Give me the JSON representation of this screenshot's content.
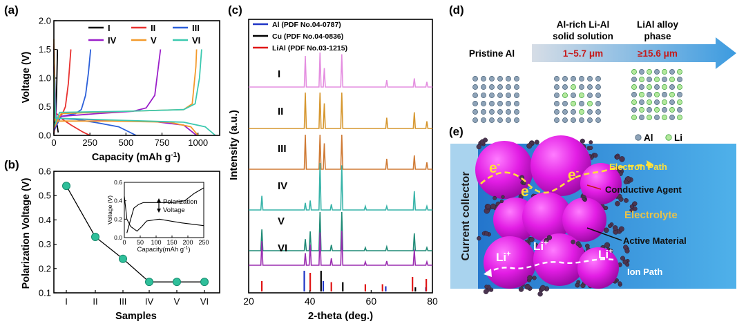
{
  "panels": {
    "a": "(a)",
    "b": "(b)",
    "c": "(c)",
    "d": "(d)",
    "e": "(e)"
  },
  "colors": {
    "I": "#000000",
    "II": "#e8312f",
    "III": "#2b5fd9",
    "IV": "#9b1fc9",
    "V": "#f39a2b",
    "VI": "#3cc9b0",
    "xrd_I": "#e48ee0",
    "xrd_II": "#d6972f",
    "xrd_III": "#cf7a34",
    "xrd_IV": "#36b3a8",
    "xrd_V": "#1f8a76",
    "xrd_VI": "#9a2db0",
    "ref_Al": "#1f35c6",
    "ref_Cu": "#000000",
    "ref_LiAl": "#e01515",
    "ball": "#2fbf9a",
    "magenta": "#e21de4",
    "arrow": "#3c9be0",
    "highlight": "#c51a1a"
  },
  "chart_data": [
    {
      "id": "a",
      "type": "line",
      "xlabel": "Capacity (mAh g",
      "xlabel_sup": "-1",
      "xlabel_end": ")",
      "ylabel": "Voltage (V)",
      "xlim": [
        0,
        1150
      ],
      "ylim": [
        0,
        2.0
      ],
      "xticks": [
        0,
        250,
        500,
        750,
        1000
      ],
      "yticks": [
        0.0,
        0.5,
        1.0,
        1.5,
        2.0
      ],
      "ytick_labels": [
        "0.0",
        "0.5",
        "1.0",
        "1.5",
        "2.0"
      ],
      "legend": [
        "I",
        "II",
        "III",
        "IV",
        "V",
        "VI"
      ],
      "series": [
        {
          "name": "I",
          "discharge": [
            [
              0,
              1.55
            ],
            [
              3,
              0.6
            ],
            [
              8,
              0.3
            ],
            [
              20,
              0.22
            ],
            [
              30,
              0.05
            ]
          ],
          "charge": [
            [
              0,
              0.02
            ],
            [
              8,
              0.25
            ],
            [
              15,
              0.42
            ],
            [
              20,
              0.9
            ],
            [
              25,
              1.5
            ]
          ]
        },
        {
          "name": "II",
          "discharge": [
            [
              0,
              1.6
            ],
            [
              10,
              0.4
            ],
            [
              60,
              0.28
            ],
            [
              120,
              0.18
            ],
            [
              200,
              0.06
            ],
            [
              250,
              0.0
            ]
          ],
          "charge": [
            [
              0,
              0.05
            ],
            [
              30,
              0.3
            ],
            [
              60,
              0.38
            ],
            [
              80,
              0.5
            ],
            [
              100,
              0.9
            ],
            [
              118,
              1.5
            ]
          ]
        },
        {
          "name": "III",
          "discharge": [
            [
              0,
              1.5
            ],
            [
              15,
              0.3
            ],
            [
              150,
              0.28
            ],
            [
              300,
              0.22
            ],
            [
              450,
              0.15
            ],
            [
              570,
              0.0
            ]
          ],
          "charge": [
            [
              0,
              0.08
            ],
            [
              50,
              0.33
            ],
            [
              150,
              0.38
            ],
            [
              190,
              0.45
            ],
            [
              220,
              0.7
            ],
            [
              240,
              1.1
            ],
            [
              255,
              1.5
            ]
          ]
        },
        {
          "name": "IV",
          "discharge": [
            [
              0,
              1.2
            ],
            [
              15,
              0.3
            ],
            [
              300,
              0.27
            ],
            [
              700,
              0.24
            ],
            [
              900,
              0.18
            ],
            [
              990,
              0.0
            ]
          ],
          "charge": [
            [
              0,
              0.1
            ],
            [
              40,
              0.33
            ],
            [
              300,
              0.38
            ],
            [
              550,
              0.42
            ],
            [
              640,
              0.48
            ],
            [
              700,
              0.7
            ],
            [
              740,
              1.5
            ]
          ]
        },
        {
          "name": "V",
          "discharge": [
            [
              0,
              1.68
            ],
            [
              10,
              0.25
            ],
            [
              400,
              0.25
            ],
            [
              800,
              0.23
            ],
            [
              950,
              0.15
            ],
            [
              1000,
              0.0
            ]
          ],
          "charge": [
            [
              0,
              0.12
            ],
            [
              50,
              0.38
            ],
            [
              500,
              0.42
            ],
            [
              900,
              0.45
            ],
            [
              960,
              0.55
            ],
            [
              985,
              1.2
            ],
            [
              990,
              1.5
            ]
          ]
        },
        {
          "name": "VI",
          "discharge": [
            [
              0,
              1.05
            ],
            [
              12,
              0.3
            ],
            [
              500,
              0.26
            ],
            [
              900,
              0.23
            ],
            [
              1050,
              0.15
            ],
            [
              1120,
              0.0
            ]
          ],
          "charge": [
            [
              0,
              0.15
            ],
            [
              40,
              0.4
            ],
            [
              500,
              0.42
            ],
            [
              900,
              0.45
            ],
            [
              980,
              0.55
            ],
            [
              1010,
              1.0
            ],
            [
              1025,
              1.5
            ]
          ]
        }
      ]
    },
    {
      "id": "b",
      "type": "scatter",
      "xlabel": "Samples",
      "ylabel": "Polarization Voltage (V)",
      "categories": [
        "I",
        "II",
        "III",
        "IV",
        "V",
        "VI"
      ],
      "values": [
        0.54,
        0.33,
        0.24,
        0.145,
        0.145,
        0.145
      ],
      "ylim": [
        0.1,
        0.6
      ],
      "yticks": [
        0.1,
        0.2,
        0.3,
        0.4,
        0.5,
        0.6
      ],
      "ytick_labels": [
        "0.1",
        "0.2",
        "0.3",
        "0.4",
        "0.5",
        "0.6"
      ],
      "inset": {
        "xlabel": "Capacity(mAh g",
        "xlabel_sup": "-1",
        "xlabel_end": ")",
        "ylabel": "Voltage (V)",
        "xlim": [
          0,
          250
        ],
        "ylim": [
          0,
          0.6
        ],
        "xticks": [
          0,
          50,
          100,
          150,
          200,
          250
        ],
        "yticks": [
          0.0,
          0.2,
          0.4,
          0.6
        ],
        "ytick_labels": [
          "0.0",
          "0.2",
          "0.4",
          "0.6"
        ],
        "annotation_1": "Polarization",
        "annotation_2": "Voltage",
        "discharge": [
          [
            0,
            0.45
          ],
          [
            8,
            0.2
          ],
          [
            20,
            0.12
          ],
          [
            40,
            0.07
          ],
          [
            55,
            0.12
          ],
          [
            70,
            0.18
          ],
          [
            110,
            0.2
          ],
          [
            180,
            0.16
          ],
          [
            250,
            0.13
          ]
        ],
        "charge": [
          [
            8,
            0.05
          ],
          [
            20,
            0.2
          ],
          [
            30,
            0.32
          ],
          [
            45,
            0.36
          ],
          [
            60,
            0.38
          ],
          [
            150,
            0.38
          ],
          [
            190,
            0.4
          ],
          [
            220,
            0.48
          ],
          [
            250,
            0.54
          ]
        ]
      }
    },
    {
      "id": "c",
      "type": "line",
      "xlabel": "2-theta (deg.)",
      "ylabel": "Intensity (a.u.)",
      "xlim": [
        20,
        80
      ],
      "xticks": [
        20,
        40,
        60,
        80
      ],
      "legend": [
        "Al (PDF No.04-0787)",
        "Cu (PDF No.04-0836)",
        "LiAl (PDF No.03-1215)"
      ],
      "patterns": [
        {
          "name": "I",
          "peaks": [
            [
              38.5,
              0.9
            ],
            [
              43.3,
              1.0
            ],
            [
              44.7,
              0.55
            ],
            [
              50.4,
              0.95
            ],
            [
              65.1,
              0.2
            ],
            [
              74.1,
              0.25
            ],
            [
              78.2,
              0.15
            ]
          ]
        },
        {
          "name": "II",
          "peaks": [
            [
              38.5,
              1.0
            ],
            [
              43.3,
              1.0
            ],
            [
              44.7,
              0.7
            ],
            [
              50.4,
              1.0
            ],
            [
              65.1,
              0.3
            ],
            [
              74.1,
              0.45
            ],
            [
              78.2,
              0.2
            ]
          ]
        },
        {
          "name": "III",
          "peaks": [
            [
              38.5,
              1.0
            ],
            [
              43.3,
              1.0
            ],
            [
              44.7,
              0.75
            ],
            [
              50.4,
              1.0
            ],
            [
              65.1,
              0.3
            ],
            [
              74.1,
              0.4
            ],
            [
              78.2,
              0.2
            ]
          ]
        },
        {
          "name": "IV",
          "peaks": [
            [
              24.3,
              0.3
            ],
            [
              38.5,
              0.15
            ],
            [
              40.1,
              0.2
            ],
            [
              43.3,
              1.0
            ],
            [
              47.0,
              0.12
            ],
            [
              50.4,
              0.95
            ],
            [
              58.1,
              0.08
            ],
            [
              65.1,
              0.08
            ],
            [
              74.1,
              0.4
            ],
            [
              78.2,
              0.08
            ]
          ]
        },
        {
          "name": "V",
          "peaks": [
            [
              24.3,
              0.55
            ],
            [
              38.5,
              0.3
            ],
            [
              40.1,
              0.5
            ],
            [
              43.3,
              1.0
            ],
            [
              47.0,
              0.15
            ],
            [
              50.4,
              1.0
            ],
            [
              58.1,
              0.08
            ],
            [
              65.1,
              0.1
            ],
            [
              74.1,
              0.45
            ],
            [
              78.2,
              0.08
            ]
          ]
        },
        {
          "name": "VI",
          "peaks": [
            [
              24.3,
              0.7
            ],
            [
              38.5,
              0.35
            ],
            [
              40.1,
              0.6
            ],
            [
              43.3,
              0.95
            ],
            [
              47.0,
              0.2
            ],
            [
              50.4,
              1.0
            ],
            [
              58.1,
              0.1
            ],
            [
              65.1,
              0.12
            ],
            [
              74.1,
              0.45
            ],
            [
              78.2,
              0.1
            ]
          ]
        }
      ],
      "references": {
        "Al": [
          [
            38.5,
            1.0
          ],
          [
            44.7,
            0.5
          ],
          [
            65.1,
            0.25
          ],
          [
            78.2,
            0.2
          ]
        ],
        "Cu": [
          [
            43.3,
            1.0
          ],
          [
            50.4,
            0.45
          ],
          [
            74.1,
            0.2
          ]
        ],
        "LiAl": [
          [
            24.3,
            0.5
          ],
          [
            40.1,
            0.9
          ],
          [
            47.0,
            0.45
          ],
          [
            58.1,
            0.35
          ],
          [
            63.7,
            0.35
          ],
          [
            73.5,
            0.7
          ],
          [
            78.0,
            0.6
          ]
        ]
      }
    }
  ],
  "panel_d": {
    "stage_1": "Pristine Al",
    "stage_2_line1": "Al-rich Li-Al",
    "stage_2_line2": "solid solution",
    "stage_3_line1": "LiAl alloy",
    "stage_3_line2": "phase",
    "range_1": "1~5.7 μm",
    "range_2": "≥15.6 μm",
    "legend_al": "Al",
    "legend_li": "Li"
  },
  "panel_e": {
    "current_collector": "Current collector",
    "electron_path": "Electron Path",
    "conductive_agent": "Conductive Agent",
    "electrolyte": "Electrolyte",
    "active_material": "Active Material",
    "ion_path": "Ion Path",
    "electron_label": "e",
    "electron_sup": "-",
    "li_label": "Li",
    "li_sup": "+"
  }
}
